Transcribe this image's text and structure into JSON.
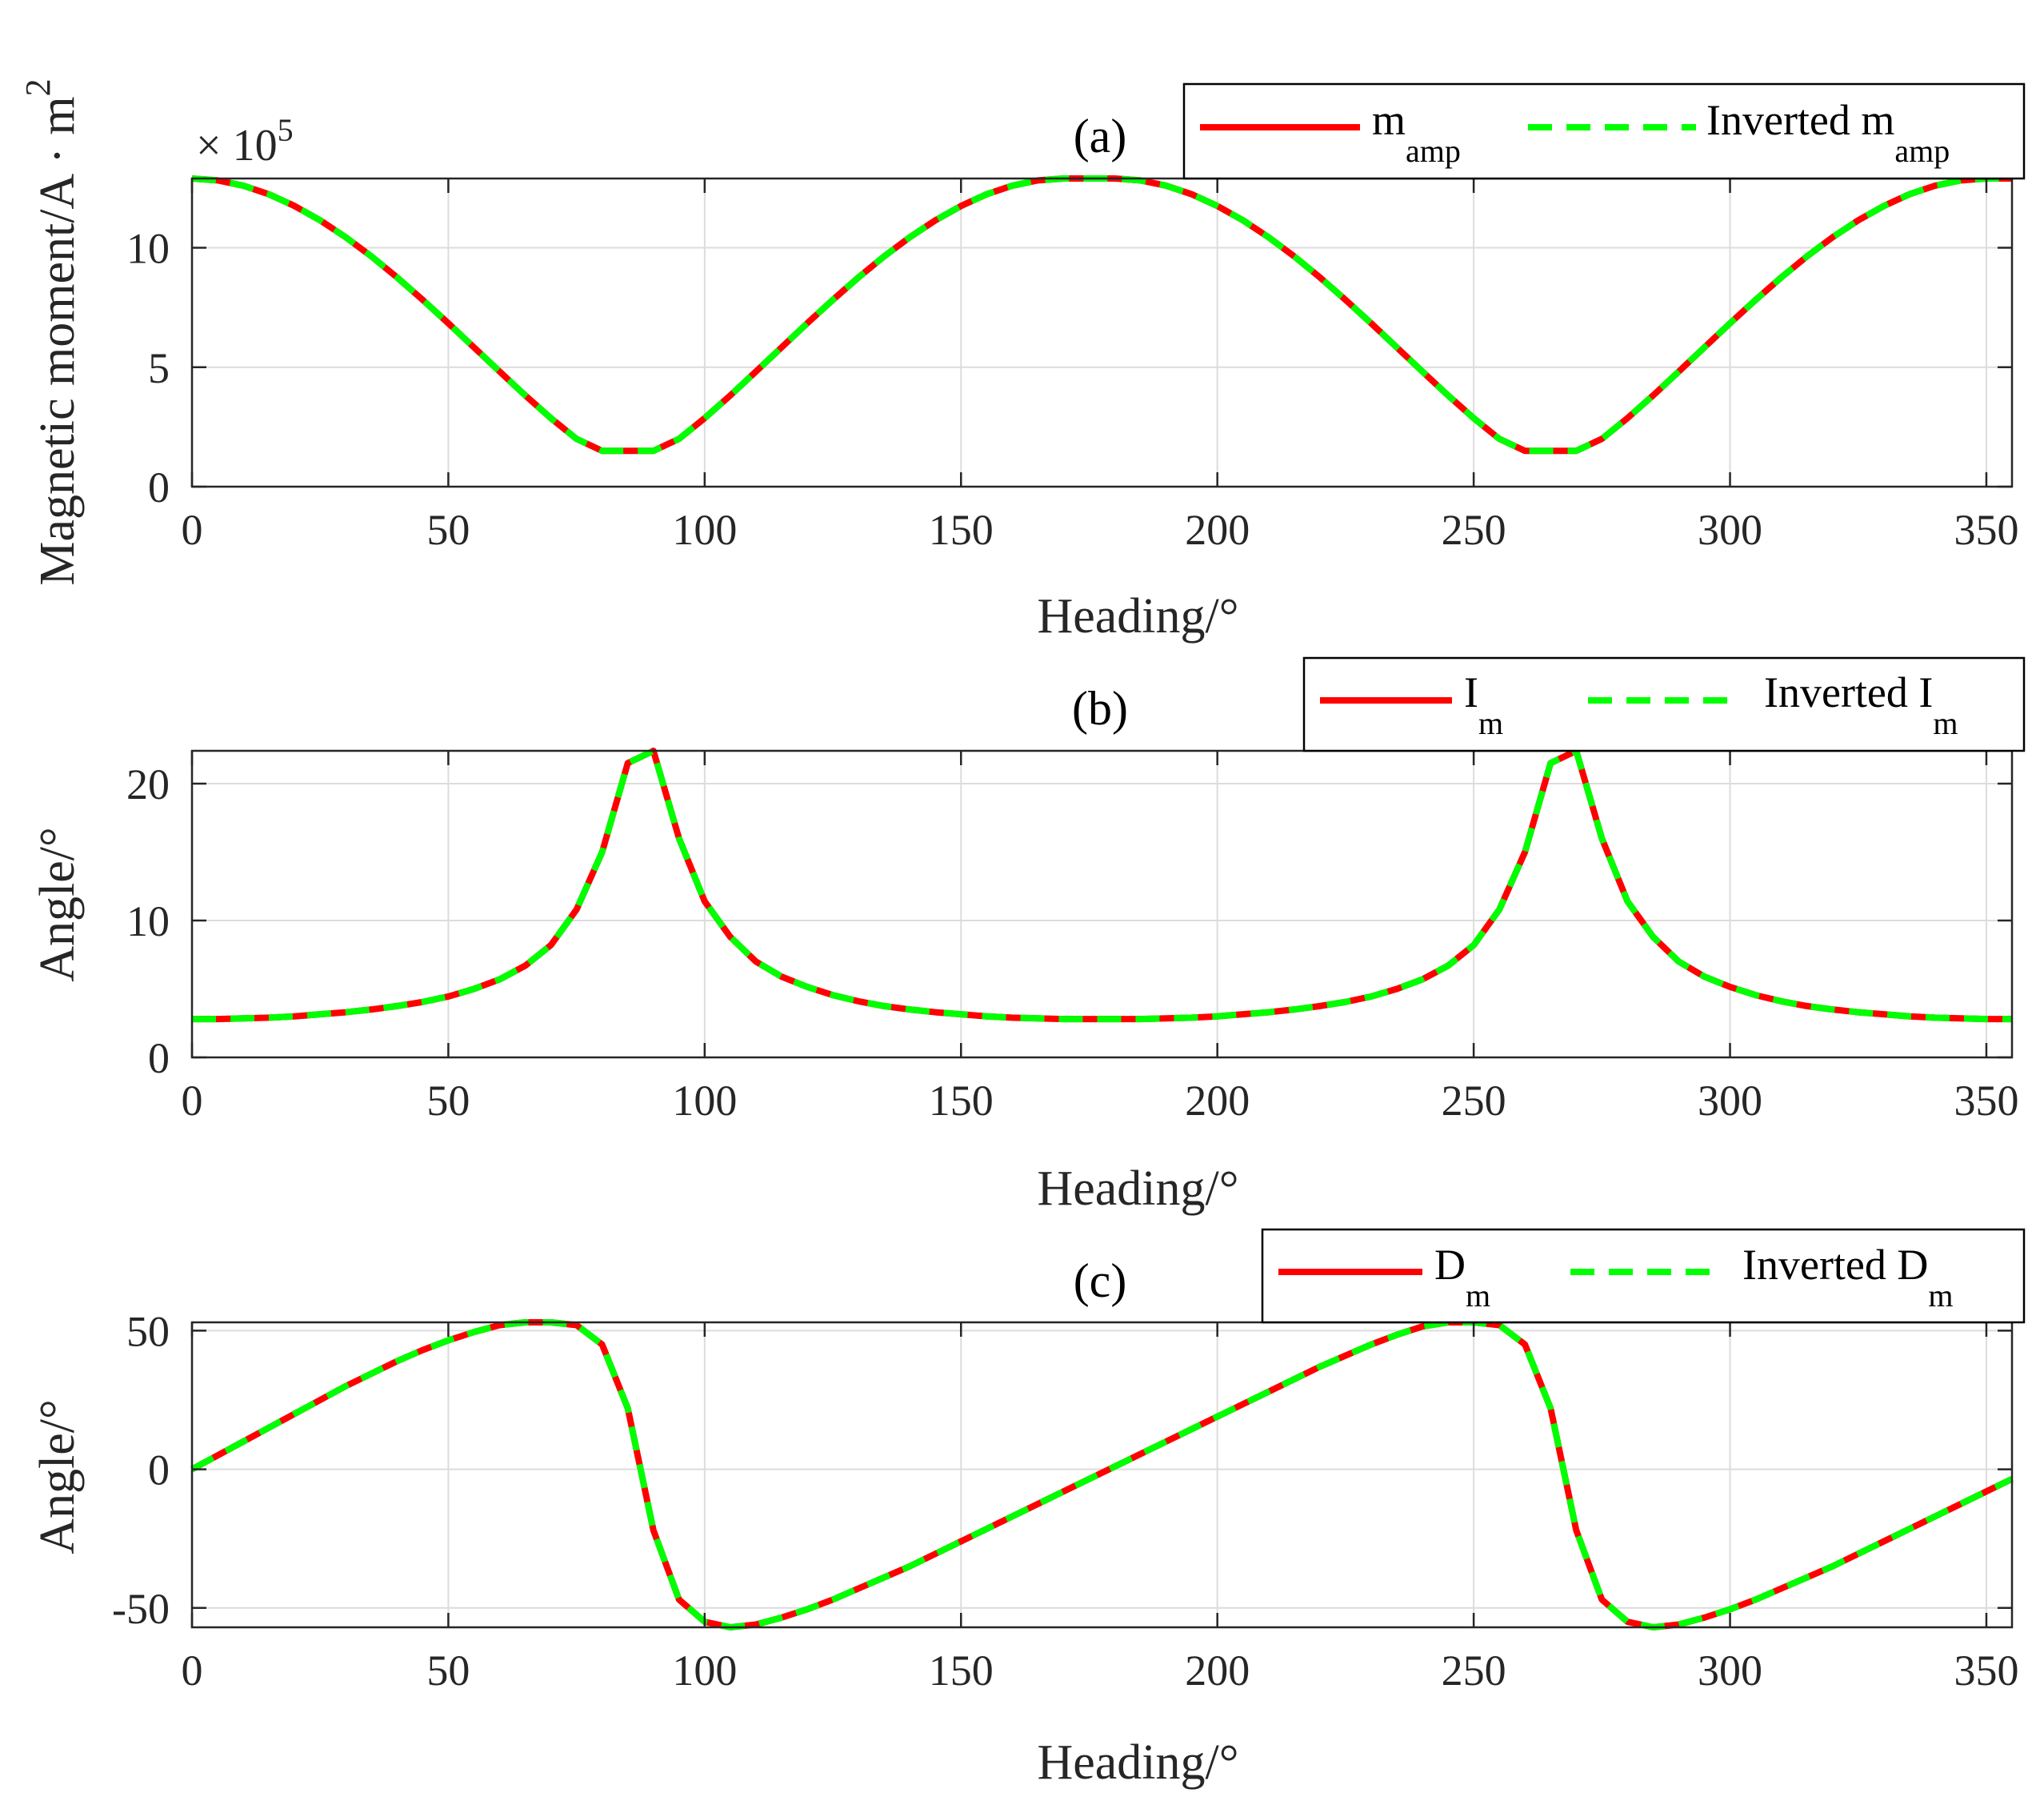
{
  "colors": {
    "original": "#ff0000",
    "inverted": "#00ff00",
    "grid": "#dcdcdc",
    "axis": "#262626"
  },
  "chart_data": [
    {
      "type": "line",
      "title": "(a)",
      "xlabel": "Heading/°",
      "ylabel": "Magnetic moment/A · m",
      "ylabel_sup": "2",
      "y_multiplier": "× 10",
      "y_multiplier_exp": "5",
      "xlim": [
        0,
        355
      ],
      "ylim": [
        0,
        12.9
      ],
      "xticks": [
        "0",
        "50",
        "100",
        "150",
        "200",
        "250",
        "300",
        "350"
      ],
      "yticks": [
        "0",
        "5",
        "10"
      ],
      "legend": [
        {
          "name": "m",
          "sub": "amp"
        },
        {
          "name": "Inverted m",
          "sub": "amp"
        }
      ],
      "x": [
        0,
        5,
        10,
        15,
        20,
        25,
        30,
        35,
        40,
        45,
        50,
        55,
        60,
        65,
        70,
        75,
        80,
        85,
        90,
        95,
        100,
        105,
        110,
        115,
        120,
        125,
        130,
        135,
        140,
        145,
        150,
        155,
        160,
        165,
        170,
        175,
        180,
        185,
        190,
        195,
        200,
        205,
        210,
        215,
        220,
        225,
        230,
        235,
        240,
        245,
        250,
        255,
        260,
        265,
        270,
        275,
        280,
        285,
        290,
        295,
        300,
        305,
        310,
        315,
        320,
        325,
        330,
        335,
        340,
        345,
        350,
        355
      ],
      "series": [
        {
          "name": "m_amp",
          "values": [
            12.9,
            12.82,
            12.6,
            12.24,
            11.75,
            11.15,
            10.44,
            9.64,
            8.76,
            7.82,
            6.84,
            5.83,
            4.82,
            3.82,
            2.87,
            2.0,
            1.5,
            1.5,
            1.5,
            2.0,
            2.87,
            3.82,
            4.82,
            5.83,
            6.84,
            7.82,
            8.76,
            9.64,
            10.44,
            11.15,
            11.75,
            12.24,
            12.6,
            12.82,
            12.9,
            12.9,
            12.9,
            12.82,
            12.6,
            12.24,
            11.75,
            11.15,
            10.44,
            9.64,
            8.76,
            7.82,
            6.84,
            5.83,
            4.82,
            3.82,
            2.87,
            2.0,
            1.5,
            1.5,
            1.5,
            2.0,
            2.87,
            3.82,
            4.82,
            5.83,
            6.84,
            7.82,
            8.76,
            9.64,
            10.44,
            11.15,
            11.75,
            12.24,
            12.6,
            12.82,
            12.9,
            12.9
          ]
        },
        {
          "name": "Inverted m_amp",
          "values": [
            12.9,
            12.82,
            12.6,
            12.24,
            11.75,
            11.15,
            10.44,
            9.64,
            8.76,
            7.82,
            6.84,
            5.83,
            4.82,
            3.82,
            2.87,
            2.0,
            1.5,
            1.5,
            1.5,
            2.0,
            2.87,
            3.82,
            4.82,
            5.83,
            6.84,
            7.82,
            8.76,
            9.64,
            10.44,
            11.15,
            11.75,
            12.24,
            12.6,
            12.82,
            12.9,
            12.9,
            12.9,
            12.82,
            12.6,
            12.24,
            11.75,
            11.15,
            10.44,
            9.64,
            8.76,
            7.82,
            6.84,
            5.83,
            4.82,
            3.82,
            2.87,
            2.0,
            1.5,
            1.5,
            1.5,
            2.0,
            2.87,
            3.82,
            4.82,
            5.83,
            6.84,
            7.82,
            8.76,
            9.64,
            10.44,
            11.15,
            11.75,
            12.24,
            12.6,
            12.82,
            12.9,
            12.9
          ]
        }
      ]
    },
    {
      "type": "line",
      "title": "(b)",
      "xlabel": "Heading/°",
      "ylabel": "Angle/°",
      "xlim": [
        0,
        355
      ],
      "ylim": [
        0,
        22.4
      ],
      "xticks": [
        "0",
        "50",
        "100",
        "150",
        "200",
        "250",
        "300",
        "350"
      ],
      "yticks": [
        "0",
        "10",
        "20"
      ],
      "legend": [
        {
          "name": "I",
          "sub": "m"
        },
        {
          "name": "Inverted I",
          "sub": "m"
        }
      ],
      "x": [
        0,
        5,
        10,
        15,
        20,
        25,
        30,
        35,
        40,
        45,
        50,
        55,
        60,
        65,
        70,
        75,
        80,
        85,
        90,
        95,
        100,
        105,
        110,
        115,
        120,
        125,
        130,
        135,
        140,
        145,
        150,
        155,
        160,
        165,
        170,
        175,
        180,
        185,
        190,
        195,
        200,
        205,
        210,
        215,
        220,
        225,
        230,
        235,
        240,
        245,
        250,
        255,
        260,
        265,
        270,
        275,
        280,
        285,
        290,
        295,
        300,
        305,
        310,
        315,
        320,
        325,
        330,
        335,
        340,
        345,
        350,
        355
      ],
      "series": [
        {
          "name": "I_m",
          "values": [
            2.8,
            2.8,
            2.85,
            2.9,
            3.0,
            3.15,
            3.3,
            3.5,
            3.75,
            4.05,
            4.45,
            5.0,
            5.7,
            6.7,
            8.2,
            10.8,
            15.0,
            21.5,
            22.4,
            16.0,
            11.4,
            8.8,
            7.0,
            5.9,
            5.15,
            4.55,
            4.1,
            3.75,
            3.5,
            3.3,
            3.15,
            3.0,
            2.9,
            2.85,
            2.8,
            2.8,
            2.8,
            2.8,
            2.85,
            2.9,
            3.0,
            3.15,
            3.3,
            3.5,
            3.75,
            4.05,
            4.45,
            5.0,
            5.7,
            6.7,
            8.2,
            10.8,
            15.0,
            21.5,
            22.4,
            16.0,
            11.4,
            8.8,
            7.0,
            5.9,
            5.15,
            4.55,
            4.1,
            3.75,
            3.5,
            3.3,
            3.15,
            3.0,
            2.9,
            2.85,
            2.8,
            2.8
          ]
        },
        {
          "name": "Inverted I_m",
          "values": [
            2.8,
            2.8,
            2.85,
            2.9,
            3.0,
            3.15,
            3.3,
            3.5,
            3.75,
            4.05,
            4.45,
            5.0,
            5.7,
            6.7,
            8.2,
            10.8,
            15.0,
            21.5,
            22.4,
            16.0,
            11.4,
            8.8,
            7.0,
            5.9,
            5.15,
            4.55,
            4.1,
            3.75,
            3.5,
            3.3,
            3.15,
            3.0,
            2.9,
            2.85,
            2.8,
            2.8,
            2.8,
            2.8,
            2.85,
            2.9,
            3.0,
            3.15,
            3.3,
            3.5,
            3.75,
            4.05,
            4.45,
            5.0,
            5.7,
            6.7,
            8.2,
            10.8,
            15.0,
            21.5,
            22.4,
            16.0,
            11.4,
            8.8,
            7.0,
            5.9,
            5.15,
            4.55,
            4.1,
            3.75,
            3.5,
            3.3,
            3.15,
            3.0,
            2.9,
            2.85,
            2.8,
            2.8
          ]
        }
      ]
    },
    {
      "type": "line",
      "title": "(c)",
      "xlabel": "Heading/°",
      "ylabel": "Angle/°",
      "xlim": [
        0,
        355
      ],
      "ylim": [
        -57,
        53
      ],
      "xticks": [
        "0",
        "50",
        "100",
        "150",
        "200",
        "250",
        "300",
        "350"
      ],
      "yticks": [
        "-50",
        "0",
        "50"
      ],
      "legend": [
        {
          "name": "D",
          "sub": "m"
        },
        {
          "name": "Inverted D",
          "sub": "m"
        }
      ],
      "x": [
        0,
        5,
        10,
        15,
        20,
        25,
        30,
        35,
        40,
        45,
        50,
        55,
        60,
        65,
        70,
        75,
        80,
        85,
        90,
        95,
        100,
        105,
        110,
        115,
        120,
        125,
        130,
        135,
        140,
        145,
        150,
        155,
        160,
        165,
        170,
        175,
        180,
        185,
        190,
        195,
        200,
        205,
        210,
        215,
        220,
        225,
        230,
        235,
        240,
        245,
        250,
        255,
        260,
        265,
        270,
        275,
        280,
        285,
        290,
        295,
        300,
        305,
        310,
        315,
        320,
        325,
        330,
        335,
        340,
        345,
        350,
        355
      ],
      "series": [
        {
          "name": "D_m",
          "values": [
            0,
            5,
            10,
            15,
            20,
            25,
            30,
            34.5,
            39,
            43,
            46.5,
            49.5,
            52,
            53,
            53,
            52,
            45,
            22,
            -22,
            -47,
            -55,
            -57,
            -56,
            -53.5,
            -50.5,
            -47,
            -43,
            -39,
            -35,
            -30.5,
            -26,
            -21.5,
            -17,
            -12.5,
            -8,
            -3.5,
            1,
            5.5,
            10,
            14.5,
            19,
            23.5,
            28,
            32.5,
            37,
            41,
            45,
            48.5,
            51.5,
            53,
            53,
            52,
            45,
            22,
            -22,
            -47,
            -55,
            -57,
            -56,
            -53.5,
            -50.5,
            -47,
            -43,
            -39,
            -35,
            -30.5,
            -26,
            -21.5,
            -17,
            -12.5,
            -8,
            -3.5
          ]
        },
        {
          "name": "Inverted D_m",
          "values": [
            0,
            5,
            10,
            15,
            20,
            25,
            30,
            34.5,
            39,
            43,
            46.5,
            49.5,
            52,
            53,
            53,
            52,
            45,
            22,
            -22,
            -47,
            -55,
            -57,
            -56,
            -53.5,
            -50.5,
            -47,
            -43,
            -39,
            -35,
            -30.5,
            -26,
            -21.5,
            -17,
            -12.5,
            -8,
            -3.5,
            1,
            5.5,
            10,
            14.5,
            19,
            23.5,
            28,
            32.5,
            37,
            41,
            45,
            48.5,
            51.5,
            53,
            53,
            52,
            45,
            22,
            -22,
            -47,
            -55,
            -57,
            -56,
            -53.5,
            -50.5,
            -47,
            -43,
            -39,
            -35,
            -30.5,
            -26,
            -21.5,
            -17,
            -12.5,
            -8,
            -3.5
          ]
        }
      ]
    }
  ]
}
